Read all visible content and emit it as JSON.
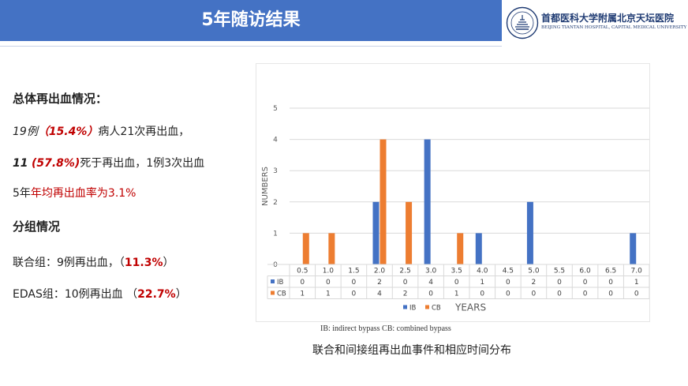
{
  "header": {
    "title": "5年随访结果",
    "hospital_cn": "首都医科大学附属北京天坛医院",
    "hospital_en": "BEIJING TIANTAN HOSPITAL, CAPITAL MEDICAL UNIVERSITY"
  },
  "left": {
    "heading1": "总体再出血情况：",
    "l1_a": "19例",
    "l1_b": "（15.4%）",
    "l1_c": "病人21次再出血，",
    "l2_a": "11",
    "l2_b": "(57.8%)",
    "l2_c": "死于再出血，1例3次出血",
    "l3_a": "5年",
    "l3_b": "年均再出血率为3.1%",
    "heading2": "分组情况",
    "g1_a": "联合组：9例再出血，（",
    "g1_b": "11.3%",
    "g1_c": "）",
    "g2_a": "EDAS组：10例再出血 （",
    "g2_b": "22.7%",
    "g2_c": "）"
  },
  "captions": {
    "small": "IB: indirect bypass CB: combined bypass",
    "main": "联合和间接组再出血事件和相应时间分布"
  },
  "chart_data": {
    "type": "bar",
    "categories": [
      "0.5",
      "1.0",
      "1.5",
      "2.0",
      "2.5",
      "3.0",
      "3.5",
      "4.0",
      "4.5",
      "5.0",
      "5.5",
      "6.0",
      "6.5",
      "7.0"
    ],
    "series": [
      {
        "name": "IB",
        "color": "#4472c4",
        "values": [
          0,
          0,
          0,
          2,
          0,
          4,
          0,
          1,
          0,
          2,
          0,
          0,
          0,
          1
        ]
      },
      {
        "name": "CB",
        "color": "#ed7d31",
        "values": [
          1,
          1,
          0,
          4,
          2,
          0,
          1,
          0,
          0,
          0,
          0,
          0,
          0,
          0
        ]
      }
    ],
    "ylabel": "NUMBERS",
    "xlabel": "YEARS",
    "yticks": [
      "0",
      "1",
      "2",
      "3",
      "4",
      "5"
    ],
    "ylim": [
      0,
      5
    ],
    "grid": true,
    "legend": "bottom",
    "data_table": true
  }
}
